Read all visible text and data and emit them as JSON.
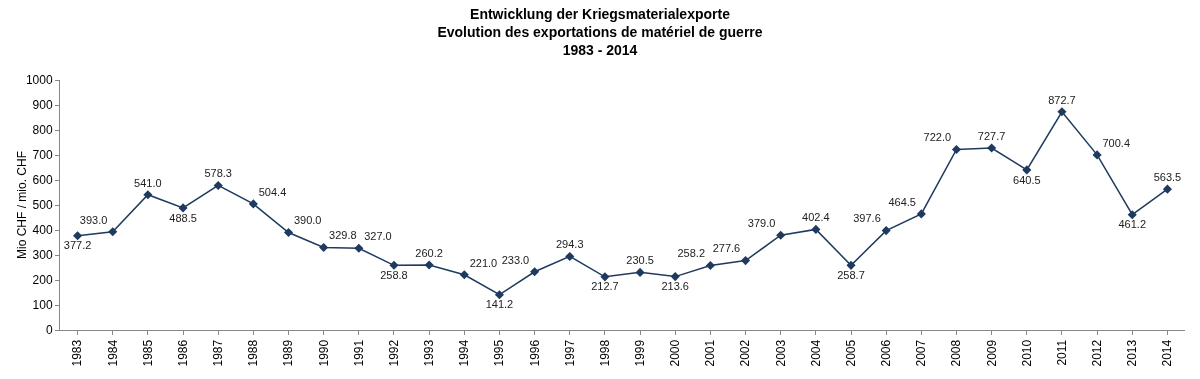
{
  "chart_data": {
    "type": "line",
    "title": "Entwicklung der Kriegsmaterialexporte\nEvolution des exportations de matériel de guerre\n1983 - 2014",
    "ylabel": "Mio CHF / mio. CHF",
    "categories": [
      "1983",
      "1984",
      "1985",
      "1986",
      "1987",
      "1988",
      "1989",
      "1990",
      "1991",
      "1992",
      "1993",
      "1994",
      "1995",
      "1996",
      "1997",
      "1998",
      "1999",
      "2000",
      "2001",
      "2002",
      "2003",
      "2004",
      "2005",
      "2006",
      "2007",
      "2008",
      "2009",
      "2010",
      "2011",
      "2012",
      "2013",
      "2014"
    ],
    "series": [
      {
        "color": "#1f3a5f",
        "values": [
          377.2,
          393.0,
          541.0,
          488.5,
          578.3,
          504.4,
          390.0,
          329.8,
          327.0,
          258.8,
          260.2,
          221.0,
          141.2,
          233.0,
          294.3,
          212.7,
          230.5,
          213.6,
          258.2,
          277.6,
          379.0,
          402.4,
          258.7,
          397.6,
          464.5,
          722.0,
          727.7,
          640.5,
          872.7,
          700.4,
          461.2,
          563.5
        ],
        "value_labels": [
          "377.2",
          "393.0",
          "541.0",
          "488.5",
          "578.3",
          "504.4",
          "390.0",
          "329.8",
          "327.0",
          "258.8",
          "260.2",
          "221.0",
          "141.2",
          "233.0",
          "294.3",
          "212.7",
          "230.5",
          "213.6",
          "258.2",
          "277.6",
          "379.0",
          "402.4",
          "258.7",
          "397.6",
          "464.5",
          "722.0",
          "727.7",
          "640.5",
          "872.7",
          "700.4",
          "461.2",
          "563.5"
        ]
      }
    ],
    "ylim": [
      0,
      1000
    ],
    "yticks": [
      0,
      100,
      200,
      300,
      400,
      500,
      600,
      700,
      800,
      900,
      1000
    ],
    "grid": false,
    "marker": "diamond",
    "line_style": "solid"
  }
}
